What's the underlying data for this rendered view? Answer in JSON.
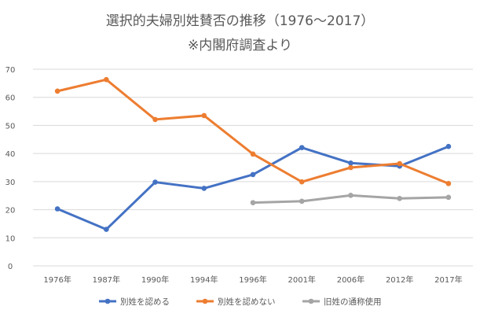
{
  "chart_data": {
    "type": "line",
    "title": "選択的夫婦別姓賛否の推移（1976～2017）",
    "subtitle": "※内閣府調査より",
    "categories": [
      "1976年",
      "1987年",
      "1990年",
      "1994年",
      "1996年",
      "2001年",
      "2006年",
      "2012年",
      "2017年"
    ],
    "ylim": [
      0,
      70
    ],
    "yticks": [
      0,
      10,
      20,
      30,
      40,
      50,
      60,
      70
    ],
    "grid": true,
    "legend_position": "bottom",
    "series": [
      {
        "name": "別姓を認める",
        "color": "#4472C4",
        "values": [
          20.3,
          13.0,
          29.8,
          27.6,
          32.5,
          42.1,
          36.6,
          35.5,
          42.5
        ]
      },
      {
        "name": "別姓を認めない",
        "color": "#ED7D31",
        "values": [
          62.2,
          66.3,
          52.1,
          53.5,
          39.8,
          29.9,
          35.0,
          36.4,
          29.3
        ]
      },
      {
        "name": "旧姓の通称使用",
        "color": "#A5A5A5",
        "values": [
          null,
          null,
          null,
          null,
          22.5,
          23.0,
          25.1,
          24.0,
          24.4
        ]
      }
    ]
  }
}
